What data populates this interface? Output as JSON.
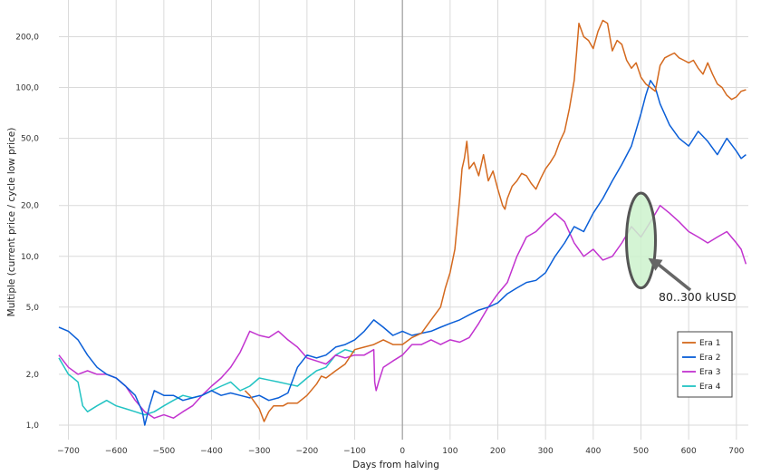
{
  "chart_data": {
    "type": "line",
    "title": "",
    "xlabel": "Days from halving",
    "ylabel": "Multiple (current price / cycle low price)",
    "xlim": [
      -720,
      725
    ],
    "ylim": [
      0.82,
      330
    ],
    "y_scale": "log",
    "grid": true,
    "legend_placement": "bottom-right",
    "x_ticks": [
      -700,
      -600,
      -500,
      -400,
      -300,
      -200,
      -100,
      0,
      100,
      200,
      300,
      400,
      500,
      600,
      700
    ],
    "x_tick_labels": [
      "−700",
      "−600",
      "−500",
      "−400",
      "−300",
      "−200",
      "−100",
      "0",
      "100",
      "200",
      "300",
      "400",
      "500",
      "600",
      "700"
    ],
    "y_ticks": [
      1,
      2,
      5,
      10,
      20,
      50,
      100,
      200
    ],
    "y_tick_labels": [
      "1,0",
      "2,0",
      "5,0",
      "10,0",
      "20,0",
      "50,0",
      "100,0",
      "200,0"
    ],
    "series": [
      {
        "name": "Era 1",
        "color": "#d4691e",
        "x": [
          -330,
          -320,
          -300,
          -290,
          -280,
          -270,
          -250,
          -240,
          -220,
          -200,
          -180,
          -170,
          -160,
          -140,
          -120,
          -100,
          -80,
          -60,
          -40,
          -20,
          0,
          20,
          40,
          60,
          80,
          90,
          100,
          110,
          120,
          125,
          130,
          135,
          140,
          150,
          160,
          170,
          180,
          190,
          200,
          210,
          215,
          220,
          230,
          240,
          250,
          260,
          270,
          280,
          290,
          300,
          310,
          320,
          330,
          340,
          350,
          360,
          365,
          370,
          380,
          390,
          400,
          410,
          420,
          430,
          440,
          450,
          460,
          470,
          480,
          490,
          500,
          510,
          520,
          530,
          540,
          550,
          560,
          570,
          580,
          590,
          600,
          610,
          620,
          630,
          640,
          650,
          660,
          670,
          680,
          690,
          700,
          710,
          720
        ],
        "y": [
          1.6,
          1.5,
          1.25,
          1.05,
          1.2,
          1.3,
          1.3,
          1.35,
          1.35,
          1.5,
          1.75,
          1.95,
          1.9,
          2.1,
          2.3,
          2.8,
          2.9,
          3.0,
          3.2,
          3.0,
          3.0,
          3.3,
          3.5,
          4.2,
          5.0,
          6.5,
          8.0,
          11.0,
          22.0,
          33.0,
          38.0,
          48.0,
          33.0,
          36.0,
          30.0,
          40.0,
          28.0,
          32.0,
          25.0,
          20.0,
          19.0,
          22.0,
          26.0,
          28.0,
          31.0,
          30.0,
          27.0,
          25.0,
          29.0,
          33.0,
          36.0,
          40.0,
          48.0,
          55.0,
          75.0,
          110.0,
          160.0,
          240.0,
          200.0,
          190.0,
          170.0,
          215.0,
          250.0,
          240.0,
          165.0,
          190.0,
          180.0,
          145.0,
          130.0,
          140.0,
          115.0,
          105.0,
          100.0,
          95.0,
          135.0,
          150.0,
          155.0,
          160.0,
          150.0,
          145.0,
          140.0,
          145.0,
          130.0,
          120.0,
          140.0,
          120.0,
          105.0,
          100.0,
          90.0,
          85.0,
          88.0,
          95.0,
          97.0
        ]
      },
      {
        "name": "Era 2",
        "color": "#0a5ed7",
        "x": [
          -720,
          -700,
          -680,
          -660,
          -640,
          -620,
          -600,
          -580,
          -560,
          -545,
          -540,
          -530,
          -520,
          -500,
          -480,
          -460,
          -440,
          -420,
          -400,
          -380,
          -360,
          -340,
          -320,
          -300,
          -280,
          -260,
          -240,
          -220,
          -200,
          -180,
          -160,
          -140,
          -120,
          -100,
          -80,
          -60,
          -40,
          -20,
          0,
          20,
          40,
          60,
          80,
          100,
          120,
          140,
          160,
          180,
          200,
          220,
          240,
          260,
          280,
          300,
          320,
          340,
          360,
          380,
          400,
          420,
          440,
          460,
          480,
          500,
          510,
          520,
          530,
          540,
          560,
          580,
          600,
          620,
          640,
          660,
          680,
          700,
          710,
          720
        ],
        "y": [
          3.8,
          3.6,
          3.2,
          2.6,
          2.2,
          2.0,
          1.9,
          1.7,
          1.5,
          1.2,
          1.0,
          1.3,
          1.6,
          1.5,
          1.5,
          1.4,
          1.45,
          1.5,
          1.6,
          1.5,
          1.55,
          1.5,
          1.45,
          1.5,
          1.4,
          1.45,
          1.55,
          2.2,
          2.6,
          2.5,
          2.6,
          2.9,
          3.0,
          3.2,
          3.6,
          4.2,
          3.8,
          3.4,
          3.6,
          3.4,
          3.5,
          3.6,
          3.8,
          4.0,
          4.2,
          4.5,
          4.8,
          5.0,
          5.3,
          6.0,
          6.5,
          7.0,
          7.2,
          8.0,
          10.0,
          12.0,
          15.0,
          14.0,
          18.0,
          22.0,
          28.0,
          35.0,
          45.0,
          70.0,
          90.0,
          110.0,
          100.0,
          80.0,
          60.0,
          50.0,
          45.0,
          55.0,
          48.0,
          40.0,
          50.0,
          42.0,
          38.0,
          40.0
        ]
      },
      {
        "name": "Era 3",
        "color": "#c233cf",
        "x": [
          -720,
          -700,
          -680,
          -660,
          -640,
          -620,
          -600,
          -580,
          -560,
          -540,
          -520,
          -500,
          -480,
          -460,
          -440,
          -420,
          -400,
          -380,
          -360,
          -340,
          -320,
          -300,
          -280,
          -260,
          -240,
          -220,
          -200,
          -180,
          -160,
          -140,
          -120,
          -100,
          -80,
          -60,
          -58,
          -55,
          -50,
          -40,
          -20,
          0,
          20,
          40,
          60,
          80,
          100,
          120,
          140,
          160,
          180,
          200,
          220,
          240,
          260,
          280,
          300,
          320,
          340,
          360,
          380,
          400,
          420,
          440,
          460,
          480,
          500,
          520,
          540,
          560,
          580,
          600,
          620,
          640,
          660,
          680,
          700,
          710,
          720
        ],
        "y": [
          2.6,
          2.2,
          2.0,
          2.1,
          2.0,
          2.0,
          1.9,
          1.7,
          1.4,
          1.2,
          1.1,
          1.15,
          1.1,
          1.2,
          1.3,
          1.5,
          1.7,
          1.9,
          2.2,
          2.7,
          3.6,
          3.4,
          3.3,
          3.6,
          3.2,
          2.9,
          2.5,
          2.4,
          2.3,
          2.6,
          2.5,
          2.6,
          2.6,
          2.8,
          1.8,
          1.6,
          1.8,
          2.2,
          2.4,
          2.6,
          3.0,
          3.0,
          3.2,
          3.0,
          3.2,
          3.1,
          3.3,
          4.0,
          5.0,
          6.0,
          7.0,
          10.0,
          13.0,
          14.0,
          16.0,
          18.0,
          16.0,
          12.0,
          10.0,
          11.0,
          9.5,
          10.0,
          12.0,
          15.0,
          13.0,
          16.0,
          20.0,
          18.0,
          16.0,
          14.0,
          13.0,
          12.0,
          13.0,
          14.0,
          12.0,
          11.0,
          9.0
        ]
      },
      {
        "name": "Era 4",
        "color": "#22c3c3",
        "x": [
          -720,
          -700,
          -690,
          -680,
          -670,
          -660,
          -640,
          -620,
          -600,
          -580,
          -560,
          -540,
          -520,
          -500,
          -480,
          -460,
          -440,
          -420,
          -400,
          -380,
          -360,
          -340,
          -320,
          -300,
          -280,
          -260,
          -240,
          -220,
          -200,
          -180,
          -160,
          -140,
          -120,
          -100
        ],
        "y": [
          2.5,
          2.0,
          1.9,
          1.8,
          1.3,
          1.2,
          1.3,
          1.4,
          1.3,
          1.25,
          1.2,
          1.15,
          1.2,
          1.3,
          1.4,
          1.5,
          1.45,
          1.5,
          1.6,
          1.7,
          1.8,
          1.6,
          1.7,
          1.9,
          1.85,
          1.8,
          1.75,
          1.7,
          1.9,
          2.1,
          2.2,
          2.6,
          2.8,
          2.7
        ]
      }
    ],
    "annotations": [
      {
        "text": "80..300 kUSD",
        "type": "ellipse-highlight",
        "center_x": 500,
        "center_y_range": [
          7,
          22
        ],
        "fill": "#ccf2cc",
        "stroke": "#555555"
      }
    ]
  }
}
